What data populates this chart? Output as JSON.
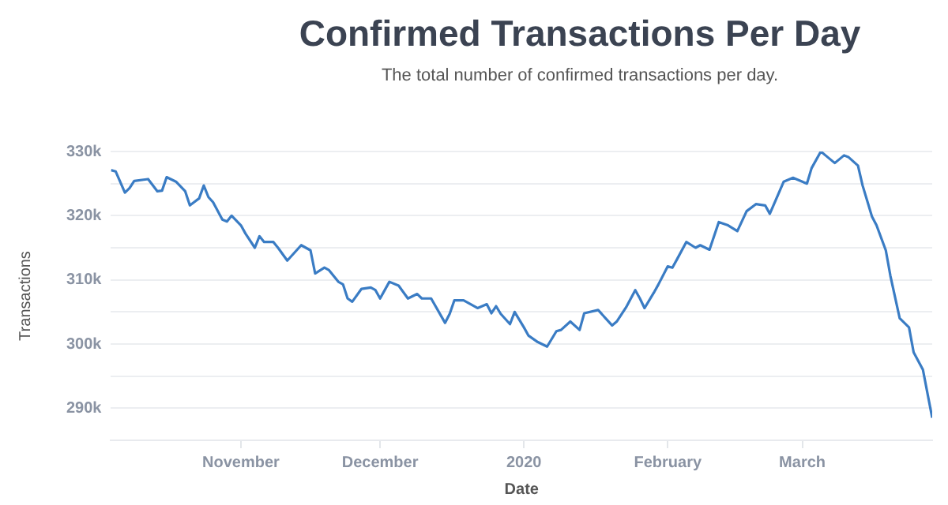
{
  "chart_data": {
    "type": "line",
    "title": "Confirmed Transactions Per Day",
    "subtitle": "The total number of confirmed transactions per day.",
    "xlabel": "Date",
    "ylabel": "Transactions",
    "x": [
      "2019-10-04",
      "2019-10-05",
      "2019-10-07",
      "2019-10-08",
      "2019-10-09",
      "2019-10-11",
      "2019-10-12",
      "2019-10-14",
      "2019-10-15",
      "2019-10-16",
      "2019-10-18",
      "2019-10-20",
      "2019-10-21",
      "2019-10-23",
      "2019-10-24",
      "2019-10-25",
      "2019-10-26",
      "2019-10-28",
      "2019-10-29",
      "2019-10-30",
      "2019-11-01",
      "2019-11-02",
      "2019-11-04",
      "2019-11-05",
      "2019-11-06",
      "2019-11-08",
      "2019-11-09",
      "2019-11-11",
      "2019-11-13",
      "2019-11-14",
      "2019-11-16",
      "2019-11-17",
      "2019-11-19",
      "2019-11-20",
      "2019-11-22",
      "2019-11-23",
      "2019-11-24",
      "2019-11-25",
      "2019-11-27",
      "2019-11-29",
      "2019-11-30",
      "2019-12-01",
      "2019-12-03",
      "2019-12-05",
      "2019-12-07",
      "2019-12-09",
      "2019-12-10",
      "2019-12-12",
      "2019-12-15",
      "2019-12-16",
      "2019-12-17",
      "2019-12-19",
      "2019-12-20",
      "2019-12-22",
      "2019-12-24",
      "2019-12-25",
      "2019-12-26",
      "2019-12-27",
      "2019-12-29",
      "2019-12-30",
      "2020-01-01",
      "2020-01-02",
      "2020-01-04",
      "2020-01-06",
      "2020-01-08",
      "2020-01-09",
      "2020-01-11",
      "2020-01-13",
      "2020-01-14",
      "2020-01-17",
      "2020-01-20",
      "2020-01-21",
      "2020-01-23",
      "2020-01-25",
      "2020-01-26",
      "2020-01-27",
      "2020-01-29",
      "2020-01-30",
      "2020-02-01",
      "2020-02-02",
      "2020-02-03",
      "2020-02-05",
      "2020-02-07",
      "2020-02-08",
      "2020-02-10",
      "2020-02-12",
      "2020-02-14",
      "2020-02-16",
      "2020-02-18",
      "2020-02-20",
      "2020-02-22",
      "2020-02-23",
      "2020-02-26",
      "2020-02-28",
      "2020-02-29",
      "2020-03-02",
      "2020-03-03",
      "2020-03-05",
      "2020-03-06",
      "2020-03-08",
      "2020-03-10",
      "2020-03-11",
      "2020-03-13",
      "2020-03-14",
      "2020-03-16",
      "2020-03-17",
      "2020-03-19",
      "2020-03-20",
      "2020-03-22",
      "2020-03-24",
      "2020-03-25",
      "2020-03-27",
      "2020-03-29"
    ],
    "series": [
      {
        "color": "#3a7cc4",
        "values": [
          327100,
          326900,
          323600,
          324300,
          325400,
          325600,
          325700,
          323800,
          323900,
          326000,
          325300,
          323800,
          321600,
          322700,
          324700,
          322900,
          322100,
          319400,
          319100,
          320000,
          318500,
          317200,
          315000,
          316800,
          315900,
          315900,
          315000,
          313000,
          314600,
          315400,
          314600,
          311000,
          311900,
          311500,
          309700,
          309300,
          307100,
          306600,
          308600,
          308800,
          308400,
          307100,
          309700,
          309100,
          307100,
          307800,
          307100,
          307100,
          303300,
          304700,
          306800,
          306800,
          306400,
          305600,
          306200,
          304800,
          305900,
          304700,
          303100,
          305000,
          302600,
          301300,
          300300,
          299600,
          302000,
          302200,
          303500,
          302200,
          304800,
          305300,
          302900,
          303500,
          305700,
          308400,
          307100,
          305600,
          308000,
          309300,
          312100,
          311900,
          313200,
          315900,
          315000,
          315400,
          314700,
          319000,
          318500,
          317600,
          320700,
          321800,
          321600,
          320300,
          325300,
          325900,
          325600,
          325000,
          327400,
          330000,
          329400,
          328200,
          329400,
          329100,
          327800,
          324700,
          319900,
          318500,
          314600,
          310600,
          304000,
          302600,
          298700,
          296000,
          288500
        ]
      }
    ],
    "xlim": [
      "2019-10-04",
      "2020-03-29"
    ],
    "xticks": [
      {
        "value": "2019-11-01",
        "label": "November"
      },
      {
        "value": "2019-12-01",
        "label": "December"
      },
      {
        "value": "2020-01-01",
        "label": "2020"
      },
      {
        "value": "2020-02-01",
        "label": "February"
      },
      {
        "value": "2020-03-01",
        "label": "March"
      }
    ],
    "ylim": [
      285000,
      330000
    ],
    "yticks": [
      {
        "value": 290000,
        "label": "290k"
      },
      {
        "value": 295000,
        "label": null
      },
      {
        "value": 300000,
        "label": "300k"
      },
      {
        "value": 305000,
        "label": null
      },
      {
        "value": 310000,
        "label": "310k"
      },
      {
        "value": 315000,
        "label": null
      },
      {
        "value": 320000,
        "label": "320k"
      },
      {
        "value": 325000,
        "label": null
      },
      {
        "value": 330000,
        "label": "330k"
      }
    ],
    "grid": "y",
    "legend": false,
    "marker": "none",
    "line_style": "solid"
  }
}
